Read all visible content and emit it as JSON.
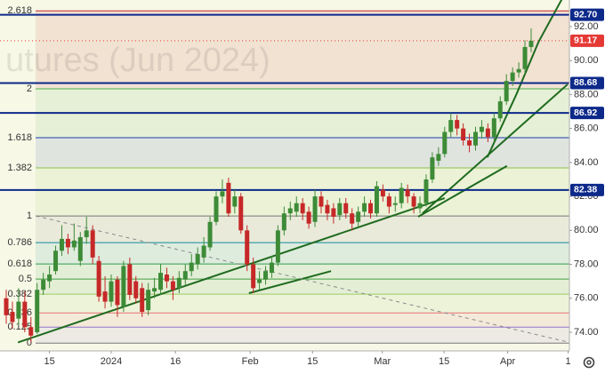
{
  "chart_data": {
    "type": "candlestick",
    "watermark": "utures (Jun 2024)",
    "up_color": "#3d8b37",
    "down_color": "#c62828",
    "x": [
      0,
      1,
      2,
      3,
      4,
      5,
      6,
      7,
      8,
      9,
      10,
      11,
      12,
      13,
      14,
      15,
      16,
      17,
      18,
      19,
      20,
      21,
      22,
      23,
      24,
      25,
      26,
      27,
      28,
      29,
      30,
      31,
      32,
      33,
      34,
      35,
      36,
      37,
      38,
      39,
      40,
      41,
      42,
      43,
      44,
      45,
      46,
      47,
      48,
      49,
      50,
      51,
      52,
      53,
      54,
      55,
      56,
      57,
      58,
      59,
      60,
      61,
      62,
      63,
      64,
      65,
      66,
      67,
      68,
      69,
      70,
      71,
      72,
      73,
      74,
      75,
      76,
      77,
      78,
      79,
      80,
      81,
      82,
      83,
      84,
      85
    ],
    "open": [
      76.0,
      75.2,
      74.8,
      75.8,
      74.3,
      74.0,
      76.5,
      77.0,
      77.6,
      78.8,
      79.5,
      79.0,
      78.2,
      79.6,
      80.0,
      78.2,
      76.4,
      75.8,
      77.1,
      75.5,
      78.0,
      77.0,
      76.6,
      75.3,
      76.4,
      76.5,
      77.4,
      77.0,
      76.6,
      77.1,
      77.6,
      78.0,
      78.4,
      79.0,
      80.5,
      82.0,
      82.8,
      81.4,
      82.0,
      80.0,
      78.0,
      76.9,
      77.1,
      77.5,
      78.1,
      80.0,
      81.0,
      81.1,
      81.6,
      81.1,
      80.5,
      82.0,
      81.5,
      81.3,
      80.9,
      81.6,
      81.0,
      80.5,
      81.1,
      81.6,
      81.0,
      82.4,
      82.0,
      81.5,
      81.6,
      82.4,
      82.0,
      81.3,
      81.6,
      83.0,
      84.1,
      84.5,
      85.8,
      86.5,
      86.0,
      85.3,
      85.0,
      85.8,
      86.0,
      85.5,
      86.6,
      87.6,
      88.8,
      89.3,
      89.5,
      90.8
    ],
    "high": [
      76.5,
      75.8,
      76.6,
      76.4,
      74.9,
      76.9,
      77.5,
      77.9,
      79.1,
      80.3,
      79.8,
      80.4,
      79.9,
      80.8,
      80.3,
      78.5,
      77.3,
      77.4,
      77.3,
      78.2,
      78.4,
      77.3,
      76.9,
      76.9,
      77.2,
      78.0,
      77.8,
      77.3,
      77.6,
      78.0,
      78.6,
      79.0,
      79.6,
      80.8,
      82.3,
      83.0,
      83.1,
      82.4,
      82.2,
      80.3,
      78.4,
      77.6,
      77.9,
      78.5,
      80.3,
      81.4,
      81.7,
      82.0,
      81.9,
      81.4,
      82.4,
      82.3,
      81.8,
      81.6,
      81.9,
      81.9,
      81.3,
      81.4,
      82.0,
      81.8,
      82.9,
      82.7,
      82.2,
      82.0,
      82.8,
      82.7,
      82.2,
      82.0,
      83.3,
      84.6,
      84.9,
      86.1,
      86.9,
      86.8,
      86.3,
      85.7,
      86.1,
      86.5,
      86.3,
      86.9,
      87.9,
      89.2,
      89.6,
      89.9,
      91.2,
      91.9
    ],
    "low": [
      74.5,
      74.2,
      74.4,
      74.0,
      73.4,
      73.9,
      76.2,
      76.6,
      77.4,
      78.5,
      78.6,
      78.8,
      77.9,
      79.2,
      78.0,
      75.8,
      75.4,
      75.5,
      74.9,
      75.2,
      75.9,
      75.7,
      74.9,
      75.0,
      76.0,
      76.2,
      76.6,
      75.9,
      76.3,
      76.8,
      77.3,
      77.7,
      78.1,
      78.8,
      80.3,
      81.6,
      80.8,
      81.0,
      79.8,
      77.6,
      76.3,
      76.5,
      76.8,
      77.2,
      77.9,
      79.7,
      80.6,
      80.8,
      80.6,
      80.1,
      80.2,
      81.0,
      80.6,
      80.4,
      80.6,
      80.7,
      80.0,
      80.2,
      80.8,
      80.7,
      80.8,
      81.7,
      81.0,
      81.1,
      81.3,
      81.6,
      81.0,
      81.0,
      81.4,
      82.8,
      83.8,
      84.3,
      85.5,
      85.6,
      85.0,
      84.6,
      84.7,
      85.4,
      85.2,
      85.2,
      86.4,
      87.4,
      88.5,
      89.0,
      89.2,
      90.5
    ],
    "close": [
      75.0,
      74.6,
      75.8,
      74.3,
      73.8,
      76.5,
      77.1,
      77.4,
      78.8,
      79.5,
      79.0,
      79.4,
      79.6,
      80.0,
      78.4,
      76.1,
      75.8,
      77.0,
      75.6,
      77.9,
      76.2,
      76.0,
      75.2,
      76.5,
      76.6,
      77.5,
      77.0,
      76.5,
      77.2,
      77.6,
      78.1,
      78.6,
      79.1,
      80.5,
      82.0,
      82.3,
      81.0,
      82.0,
      80.0,
      78.0,
      76.6,
      77.1,
      77.6,
      78.1,
      80.0,
      81.0,
      81.3,
      81.6,
      81.0,
      80.4,
      82.0,
      81.4,
      81.0,
      80.8,
      81.6,
      81.0,
      80.4,
      81.1,
      81.6,
      81.0,
      82.6,
      82.0,
      81.4,
      81.6,
      82.5,
      82.0,
      81.4,
      81.6,
      83.0,
      84.3,
      84.5,
      85.8,
      86.5,
      86.0,
      85.3,
      85.0,
      85.8,
      86.1,
      85.5,
      86.6,
      87.6,
      88.8,
      89.3,
      89.5,
      90.8,
      91.17
    ],
    "xlim": [
      -1.01,
      91.2
    ],
    "ylim": [
      72.9,
      93.57
    ],
    "xticks": [
      {
        "value": 7,
        "label": "15"
      },
      {
        "value": 17,
        "label": "2024"
      },
      {
        "value": 27.4,
        "label": "16"
      },
      {
        "value": 39.5,
        "label": "Feb"
      },
      {
        "value": 49.6,
        "label": "15"
      },
      {
        "value": 60.9,
        "label": "Mar"
      },
      {
        "value": 70.9,
        "label": "15"
      },
      {
        "value": 81.2,
        "label": "Apr"
      },
      {
        "value": 91,
        "label": "1"
      }
    ],
    "yticks": [
      {
        "value": 92,
        "label": "92.00"
      },
      {
        "value": 90,
        "label": "90.00"
      },
      {
        "value": 88,
        "label": "88.00"
      },
      {
        "value": 86,
        "label": "86.00"
      },
      {
        "value": 84,
        "label": "84.00"
      },
      {
        "value": 82,
        "label": "82.00"
      },
      {
        "value": 80,
        "label": "80.00"
      },
      {
        "value": 78,
        "label": "78.00"
      },
      {
        "value": 76,
        "label": "76.00"
      },
      {
        "value": 74,
        "label": "74.00"
      }
    ],
    "fib_levels": [
      {
        "label": "2.618",
        "value": 92.93,
        "color": "#c62828"
      },
      {
        "label": "2",
        "value": 88.34,
        "color": "#4caf50"
      },
      {
        "label": "1.618",
        "value": 85.46,
        "color": "#1a3fa8"
      },
      {
        "label": "1.382",
        "value": 83.68,
        "color": "#8bc34a"
      },
      {
        "label": "1",
        "value": 80.85,
        "color": "#787878"
      },
      {
        "label": "0.786",
        "value": 79.28,
        "color": "#0e8a9a"
      },
      {
        "label": "0.618",
        "value": 78.02,
        "color": "#2e9e4f"
      },
      {
        "label": "0.5",
        "value": 77.13,
        "color": "#43a047"
      },
      {
        "label": "0.382",
        "value": 76.24,
        "color": "#9ccc65"
      },
      {
        "label": "0.236",
        "value": 75.14,
        "color": "#e57373"
      },
      {
        "label": "0.125",
        "value": 74.3,
        "color": "#9575cd"
      },
      {
        "label": "0",
        "value": 73.36,
        "color": "#787878"
      }
    ],
    "price_lines": [
      {
        "value": 92.7,
        "label": "92.70",
        "color": "#0d2a8a",
        "style": "solid"
      },
      {
        "value": 91.17,
        "label": "91.17",
        "color": "#e53935",
        "style": "dotted"
      },
      {
        "value": 88.68,
        "label": "88.68",
        "color": "#0d2a8a",
        "style": "solid"
      },
      {
        "value": 86.92,
        "label": "86.92",
        "color": "#0d2a8a",
        "style": "solid"
      },
      {
        "value": 82.38,
        "label": "82.38",
        "color": "#0d2a8a",
        "style": "solid"
      }
    ],
    "trendlines": [
      {
        "color": "#1f6b1f",
        "style": "solid",
        "x": [
          1.9,
          71
        ],
        "y": [
          73.4,
          81.9
        ]
      },
      {
        "color": "#1f6b1f",
        "style": "solid",
        "x": [
          39.3,
          52.6
        ],
        "y": [
          76.3,
          77.6
        ]
      },
      {
        "color": "#1f6b1f",
        "style": "solid",
        "x": [
          66.7,
          81.1
        ],
        "y": [
          80.8,
          83.8
        ]
      },
      {
        "color": "#1f6b1f",
        "style": "solid",
        "x": [
          67.4,
          90.9
        ],
        "y": [
          81.0,
          88.6
        ]
      },
      {
        "color": "#1f6b1f",
        "style": "solid",
        "x": [
          77.9,
          82.6,
          86.2,
          90.1
        ],
        "y": [
          84.3,
          88.0,
          91.1,
          93.7
        ]
      },
      {
        "color": "#8a8a8a",
        "style": "dashed",
        "x": [
          4.8,
          91.2
        ],
        "y": [
          80.85,
          73.4
        ]
      }
    ]
  }
}
